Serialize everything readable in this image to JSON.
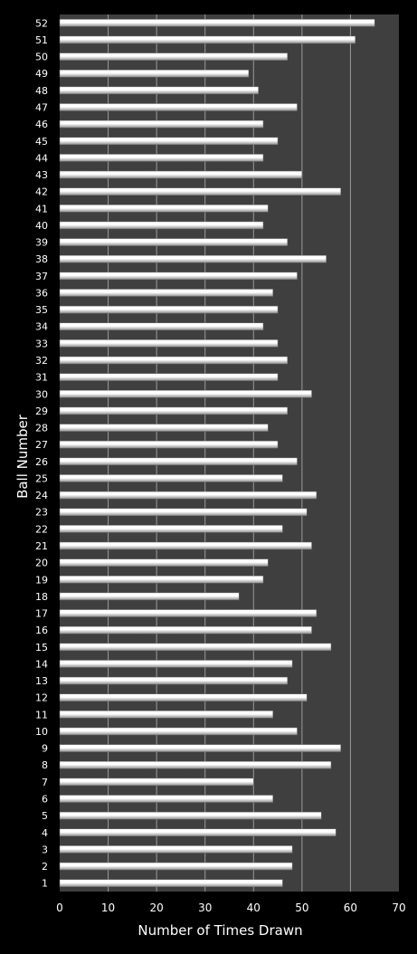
{
  "chart_data": {
    "type": "bar",
    "orientation": "horizontal",
    "xlabel": "Number of Times Drawn",
    "ylabel": "Ball Number",
    "xlim": [
      0,
      70
    ],
    "xticks": [
      "0",
      "10",
      "20",
      "30",
      "40",
      "50",
      "60",
      "70"
    ],
    "grid": true,
    "categories": [
      "1",
      "2",
      "3",
      "4",
      "5",
      "6",
      "7",
      "8",
      "9",
      "10",
      "11",
      "12",
      "13",
      "14",
      "15",
      "16",
      "17",
      "18",
      "19",
      "20",
      "21",
      "22",
      "23",
      "24",
      "25",
      "26",
      "27",
      "28",
      "29",
      "30",
      "31",
      "32",
      "33",
      "34",
      "35",
      "36",
      "37",
      "38",
      "39",
      "40",
      "41",
      "42",
      "43",
      "44",
      "45",
      "46",
      "47",
      "48",
      "49",
      "50",
      "51",
      "52"
    ],
    "values": [
      46,
      48,
      48,
      57,
      54,
      44,
      40,
      56,
      58,
      49,
      44,
      51,
      47,
      48,
      56,
      52,
      53,
      37,
      42,
      43,
      52,
      46,
      51,
      53,
      46,
      49,
      45,
      43,
      47,
      52,
      45,
      47,
      45,
      42,
      45,
      44,
      49,
      55,
      47,
      42,
      43,
      58,
      50,
      42,
      45,
      42,
      49,
      41,
      39,
      47,
      61,
      65
    ]
  },
  "colors": {
    "page_background": "#000000",
    "plot_background": "#3f3f3f",
    "gridline": "#9a9a9a",
    "bar_light": "#ffffff",
    "bar_dark": "#8e8e8e",
    "text": "#ffffff"
  }
}
